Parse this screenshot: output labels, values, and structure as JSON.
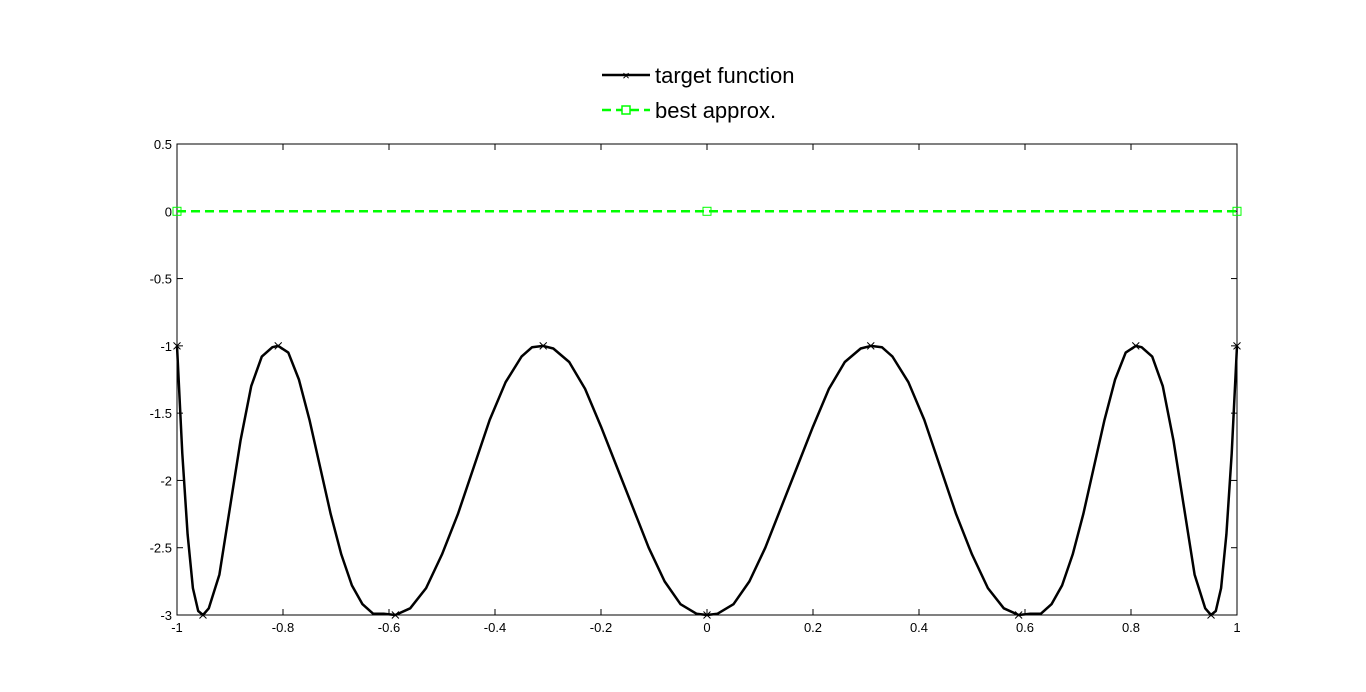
{
  "chart_data": {
    "type": "line",
    "xlim": [
      -1,
      1
    ],
    "ylim": [
      -3,
      0.5
    ],
    "x_ticks": [
      -1,
      -0.8,
      -0.6,
      -0.4,
      -0.2,
      0,
      0.2,
      0.4,
      0.6,
      0.8,
      1
    ],
    "x_tick_labels": [
      "-1",
      "-0.8",
      "-0.6",
      "-0.4",
      "-0.2",
      "0",
      "0.2",
      "0.4",
      "0.6",
      "0.8",
      "1"
    ],
    "y_ticks": [
      0.5,
      0,
      -0.5,
      -1,
      -1.5,
      -2,
      -2.5,
      -3
    ],
    "y_tick_labels": [
      "0.5",
      "0",
      "-0.5",
      "-1",
      "-1.5",
      "-2",
      "-2.5",
      "-3"
    ],
    "grid": false,
    "legend": {
      "position": "top-center",
      "entries": [
        "target function",
        "best approx."
      ]
    },
    "series": [
      {
        "name": "target function",
        "color": "#000000",
        "line_style": "solid",
        "marker": "x",
        "x": [
          -1,
          -0.99,
          -0.98,
          -0.97,
          -0.96,
          -0.951,
          -0.94,
          -0.92,
          -0.9,
          -0.88,
          -0.86,
          -0.84,
          -0.82,
          -0.809,
          -0.79,
          -0.77,
          -0.75,
          -0.73,
          -0.71,
          -0.69,
          -0.67,
          -0.65,
          -0.63,
          -0.61,
          -0.588,
          -0.56,
          -0.53,
          -0.5,
          -0.47,
          -0.44,
          -0.41,
          -0.38,
          -0.35,
          -0.33,
          -0.309,
          -0.29,
          -0.26,
          -0.23,
          -0.2,
          -0.17,
          -0.14,
          -0.11,
          -0.08,
          -0.05,
          -0.02,
          0,
          0.02,
          0.05,
          0.08,
          0.11,
          0.14,
          0.17,
          0.2,
          0.23,
          0.26,
          0.29,
          0.309,
          0.33,
          0.35,
          0.38,
          0.41,
          0.44,
          0.47,
          0.5,
          0.53,
          0.56,
          0.588,
          0.61,
          0.63,
          0.65,
          0.67,
          0.69,
          0.71,
          0.73,
          0.75,
          0.77,
          0.79,
          0.809,
          0.82,
          0.84,
          0.86,
          0.88,
          0.9,
          0.92,
          0.94,
          0.951,
          0.96,
          0.97,
          0.98,
          0.99,
          1
        ],
        "y": [
          -1,
          -1.8,
          -2.4,
          -2.8,
          -2.97,
          -3,
          -2.95,
          -2.7,
          -2.2,
          -1.7,
          -1.3,
          -1.08,
          -1.01,
          -1,
          -1.05,
          -1.25,
          -1.55,
          -1.9,
          -2.25,
          -2.55,
          -2.78,
          -2.92,
          -2.99,
          -2.99,
          -3,
          -2.95,
          -2.8,
          -2.55,
          -2.25,
          -1.9,
          -1.55,
          -1.27,
          -1.08,
          -1.01,
          -1,
          -1.02,
          -1.12,
          -1.32,
          -1.6,
          -1.9,
          -2.2,
          -2.5,
          -2.75,
          -2.92,
          -2.99,
          -3,
          -2.99,
          -2.92,
          -2.75,
          -2.5,
          -2.2,
          -1.9,
          -1.6,
          -1.32,
          -1.12,
          -1.02,
          -1,
          -1.01,
          -1.08,
          -1.27,
          -1.55,
          -1.9,
          -2.25,
          -2.55,
          -2.8,
          -2.95,
          -3,
          -2.99,
          -2.99,
          -2.92,
          -2.78,
          -2.55,
          -2.25,
          -1.9,
          -1.55,
          -1.25,
          -1.05,
          -1,
          -1.01,
          -1.08,
          -1.3,
          -1.7,
          -2.2,
          -2.7,
          -2.95,
          -3,
          -2.97,
          -2.8,
          -2.4,
          -1.8,
          -1
        ],
        "marker_x": [
          -1,
          -0.951,
          -0.809,
          -0.588,
          -0.309,
          0,
          0.309,
          0.588,
          0.809,
          0.951,
          1
        ],
        "marker_y": [
          -1,
          -3,
          -1,
          -3,
          -1,
          -3,
          -1,
          -3,
          -1,
          -3,
          -1
        ]
      },
      {
        "name": "best approx.",
        "color": "#00ff00",
        "line_style": "dashed",
        "marker": "square",
        "x": [
          -1,
          1
        ],
        "y": [
          0,
          0
        ],
        "marker_x": [
          -1,
          0,
          1
        ],
        "marker_y": [
          0,
          0,
          0
        ]
      }
    ]
  }
}
